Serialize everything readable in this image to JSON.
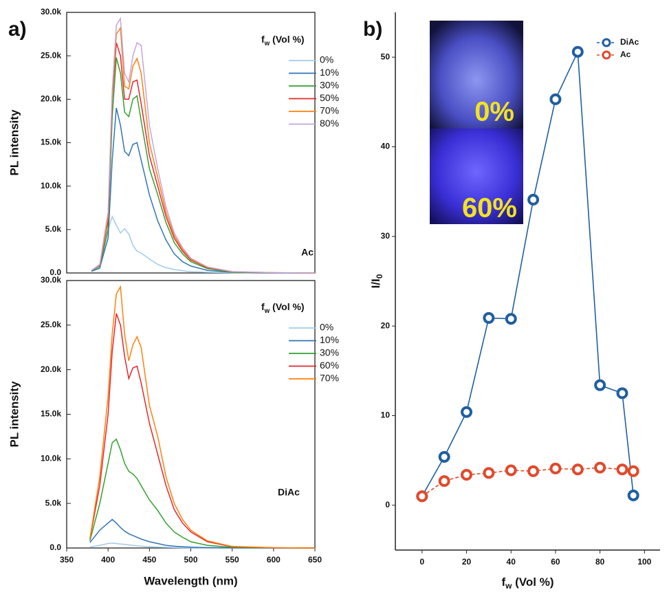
{
  "chart_data": [
    {
      "type": "line",
      "panel_label": "a)",
      "ylabel": "PL intensity",
      "annotation": "Ac",
      "legend_title": {
        "main": "f",
        "sub": "w",
        "rest": " (Vol %)"
      },
      "xlim": [
        350,
        650
      ],
      "ylim": [
        0,
        30000
      ],
      "yticks": [
        {
          "value": 0,
          "label": "0.0"
        },
        {
          "value": 5000,
          "label": "5.0k"
        },
        {
          "value": 10000,
          "label": "10.0k"
        },
        {
          "value": 15000,
          "label": "15.0k"
        },
        {
          "value": 20000,
          "label": "20.0k"
        },
        {
          "value": 25000,
          "label": "25.0k"
        },
        {
          "value": 30000,
          "label": "30.0k"
        }
      ],
      "x": [
        380,
        390,
        400,
        405,
        410,
        415,
        420,
        425,
        430,
        435,
        440,
        450,
        460,
        470,
        480,
        490,
        500,
        520,
        550,
        600,
        650
      ],
      "series": [
        {
          "name": "0%",
          "color": "#9fcbe8",
          "values": [
            200,
            500,
            5000,
            6500,
            5500,
            4600,
            5100,
            4500,
            3200,
            2500,
            2300,
            1600,
            1000,
            600,
            400,
            250,
            150,
            80,
            30,
            0,
            0
          ]
        },
        {
          "name": "10%",
          "color": "#2e75b6",
          "values": [
            200,
            600,
            4000,
            13000,
            19000,
            17000,
            14000,
            13500,
            14800,
            15000,
            13000,
            9000,
            6000,
            3800,
            2200,
            1300,
            800,
            300,
            80,
            0,
            0
          ]
        },
        {
          "name": "30%",
          "color": "#33a02c",
          "values": [
            300,
            800,
            5000,
            18000,
            24800,
            23000,
            18500,
            18000,
            20000,
            20400,
            17500,
            12000,
            9000,
            5800,
            3500,
            2200,
            1300,
            500,
            100,
            20,
            0
          ]
        },
        {
          "name": "50%",
          "color": "#e3272b",
          "values": [
            300,
            900,
            6000,
            20000,
            26500,
            25000,
            20000,
            20000,
            22000,
            22200,
            19500,
            13500,
            10000,
            6500,
            4000,
            2500,
            1500,
            600,
            150,
            30,
            0
          ]
        },
        {
          "name": "70%",
          "color": "#ff7f0e",
          "values": [
            300,
            900,
            6500,
            20500,
            27500,
            28200,
            21500,
            21200,
            23800,
            24700,
            23000,
            15000,
            11000,
            7000,
            4300,
            2700,
            1600,
            650,
            150,
            30,
            0
          ]
        },
        {
          "name": "80%",
          "color": "#c3a5dc",
          "values": [
            300,
            1000,
            7000,
            21000,
            28500,
            29300,
            23000,
            22000,
            25000,
            26500,
            26200,
            17000,
            12000,
            7600,
            4600,
            2900,
            1700,
            700,
            170,
            30,
            0
          ]
        }
      ]
    },
    {
      "type": "line",
      "ylabel": "PL intensity",
      "xlabel": "Wavelength (nm)",
      "annotation": "DiAc",
      "legend_title": {
        "main": "f",
        "sub": "w",
        "rest": " (Vol %)"
      },
      "xlim": [
        350,
        650
      ],
      "ylim": [
        0,
        30000
      ],
      "xticks": [
        350,
        400,
        450,
        500,
        550,
        600,
        650
      ],
      "yticks": [
        {
          "value": 0,
          "label": "0.0"
        },
        {
          "value": 5000,
          "label": "5.0k"
        },
        {
          "value": 10000,
          "label": "10.0k"
        },
        {
          "value": 15000,
          "label": "15.0k"
        },
        {
          "value": 20000,
          "label": "20.0k"
        },
        {
          "value": 25000,
          "label": "25.0k"
        },
        {
          "value": 30000,
          "label": "30.0k"
        }
      ],
      "x": [
        378,
        390,
        400,
        405,
        410,
        415,
        420,
        425,
        430,
        435,
        440,
        450,
        460,
        470,
        480,
        490,
        500,
        520,
        550,
        600,
        650
      ],
      "series": [
        {
          "name": "0%",
          "color": "#9fcbe8",
          "values": [
            100,
            300,
            500,
            550,
            500,
            450,
            400,
            350,
            300,
            250,
            200,
            150,
            100,
            80,
            50,
            30,
            20,
            10,
            0,
            0,
            0
          ]
        },
        {
          "name": "10%",
          "color": "#2e75b6",
          "values": [
            600,
            2000,
            2800,
            3200,
            2800,
            2300,
            1900,
            1600,
            1400,
            1200,
            1000,
            700,
            500,
            300,
            200,
            150,
            100,
            50,
            20,
            0,
            0
          ]
        },
        {
          "name": "30%",
          "color": "#33a02c",
          "values": [
            800,
            5000,
            9500,
            11800,
            12200,
            11000,
            9500,
            8600,
            8300,
            7800,
            7000,
            5400,
            4200,
            2800,
            1800,
            1200,
            700,
            300,
            80,
            20,
            0
          ]
        },
        {
          "name": "60%",
          "color": "#e3272b",
          "values": [
            1000,
            7000,
            15000,
            22000,
            26300,
            25000,
            21500,
            19000,
            20200,
            20400,
            18500,
            14000,
            10500,
            7000,
            4300,
            2800,
            1800,
            700,
            150,
            30,
            0
          ]
        },
        {
          "name": "70%",
          "color": "#ff7f0e",
          "values": [
            1000,
            8000,
            17000,
            24000,
            28500,
            29300,
            24000,
            21000,
            22800,
            23700,
            22500,
            16000,
            12500,
            8000,
            5000,
            3200,
            2000,
            800,
            170,
            40,
            0
          ]
        }
      ]
    },
    {
      "type": "line",
      "markers": true,
      "panel_label": "b)",
      "ylabel": {
        "main": "I/I",
        "sub": "0"
      },
      "xlabel": {
        "main": "f",
        "sub": "w",
        "rest": " (Vol %)"
      },
      "inset_labels": [
        "0%",
        "60%"
      ],
      "xlim": [
        -12,
        107
      ],
      "ylim": [
        -5,
        55
      ],
      "xticks": [
        0,
        20,
        40,
        60,
        80,
        100
      ],
      "yticks": [
        0,
        10,
        20,
        30,
        40,
        50
      ],
      "x": [
        0,
        10,
        20,
        30,
        40,
        50,
        60,
        70,
        80,
        90,
        95
      ],
      "series": [
        {
          "name": "DiAc",
          "color": "#1f5fa0",
          "dashed": false,
          "values": [
            1,
            5.4,
            10.4,
            20.9,
            20.8,
            34.1,
            45.3,
            50.6,
            13.4,
            12.5,
            1.1
          ]
        },
        {
          "name": "Ac",
          "color": "#e04a2c",
          "dashed": true,
          "values": [
            1,
            2.7,
            3.4,
            3.6,
            3.9,
            3.8,
            4.1,
            4.0,
            4.2,
            4.0,
            3.8
          ]
        }
      ]
    }
  ]
}
